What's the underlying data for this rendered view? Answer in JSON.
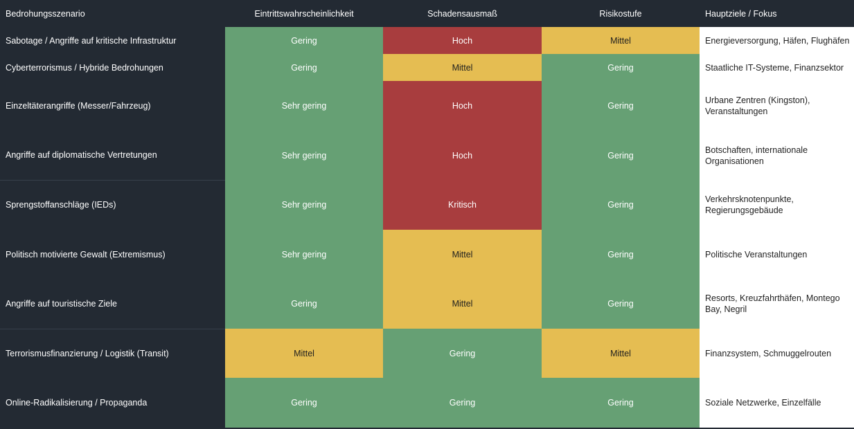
{
  "headers": [
    "Bedrohungsszenario",
    "Eintrittswahrscheinlichkeit",
    "Schadensausmaß",
    "Risikostufe",
    "Hauptziele / Fokus"
  ],
  "level_colors": {
    "green": "#66a074",
    "yellow": "#e5bd52",
    "red": "#a83d3e"
  },
  "rows": [
    {
      "scenario": "Sabotage / Angriffe auf kritische Infrastruktur",
      "probability": "Gering",
      "probability_color": "green",
      "damage": "Hoch",
      "damage_color": "red",
      "risk": "Mittel",
      "risk_color": "yellow",
      "focus": "Energieversorgung, Häfen, Flughäfen"
    },
    {
      "scenario": "Cyberterrorismus / Hybride Bedrohungen",
      "probability": "Gering",
      "probability_color": "green",
      "damage": "Mittel",
      "damage_color": "yellow",
      "risk": "Gering",
      "risk_color": "green",
      "focus": "Staatliche IT-Systeme, Finanzsektor"
    },
    {
      "scenario": "Einzeltäterangriffe (Messer/Fahrzeug)",
      "probability": "Sehr gering",
      "probability_color": "green",
      "damage": "Hoch",
      "damage_color": "red",
      "risk": "Gering",
      "risk_color": "green",
      "focus": "Urbane Zentren (Kingston), Veranstaltungen"
    },
    {
      "scenario": "Angriffe auf diplomatische Vertretungen",
      "probability": "Sehr gering",
      "probability_color": "green",
      "damage": "Hoch",
      "damage_color": "red",
      "risk": "Gering",
      "risk_color": "green",
      "focus": "Botschaften, internationale Organisationen"
    },
    {
      "scenario": "Sprengstoffanschläge (IEDs)",
      "probability": "Sehr gering",
      "probability_color": "green",
      "damage": "Kritisch",
      "damage_color": "red",
      "risk": "Gering",
      "risk_color": "green",
      "focus": "Verkehrsknotenpunkte, Regierungsgebäude"
    },
    {
      "scenario": "Politisch motivierte Gewalt (Extremismus)",
      "probability": "Sehr gering",
      "probability_color": "green",
      "damage": "Mittel",
      "damage_color": "yellow",
      "risk": "Gering",
      "risk_color": "green",
      "focus": "Politische Veranstaltungen"
    },
    {
      "scenario": "Angriffe auf touristische Ziele",
      "probability": "Gering",
      "probability_color": "green",
      "damage": "Mittel",
      "damage_color": "yellow",
      "risk": "Gering",
      "risk_color": "green",
      "focus": "Resorts, Kreuzfahrthäfen, Montego Bay, Negril"
    },
    {
      "scenario": "Terrorismusfinanzierung / Logistik (Transit)",
      "probability": "Mittel",
      "probability_color": "yellow",
      "damage": "Gering",
      "damage_color": "green",
      "risk": "Mittel",
      "risk_color": "yellow",
      "focus": "Finanzsystem, Schmuggelrouten"
    },
    {
      "scenario": "Online-Radikalisierung / Propaganda",
      "probability": "Gering",
      "probability_color": "green",
      "damage": "Gering",
      "damage_color": "green",
      "risk": "Gering",
      "risk_color": "green",
      "focus": "Soziale Netzwerke, Einzelfälle"
    }
  ]
}
